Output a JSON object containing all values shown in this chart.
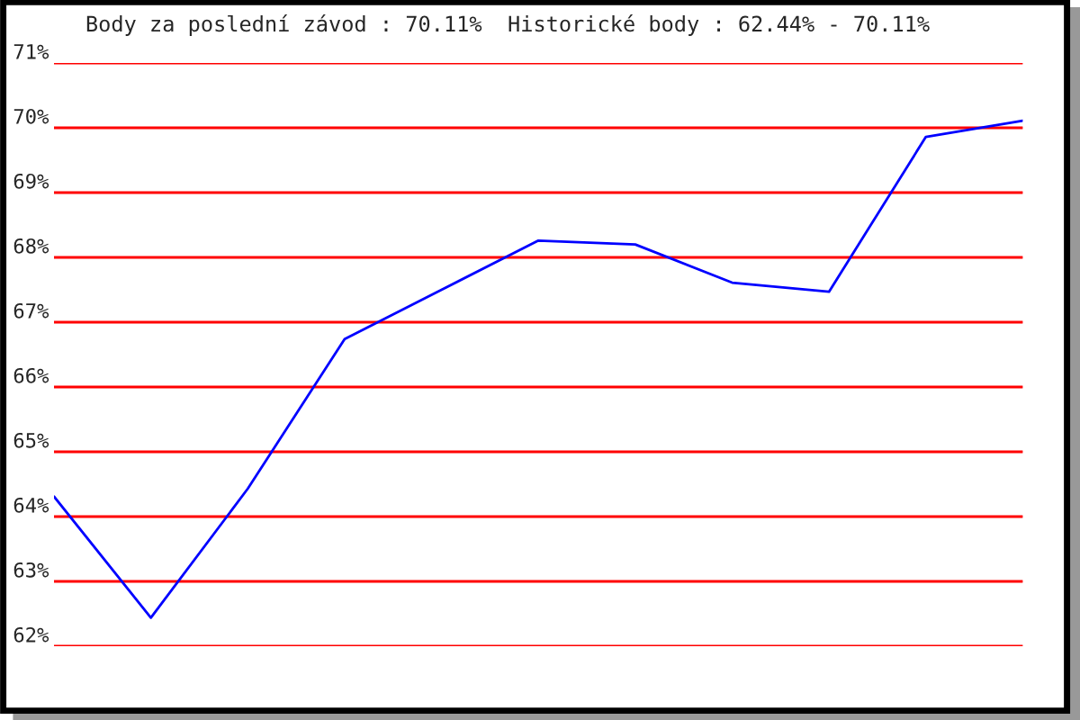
{
  "chart_data": {
    "type": "line",
    "title": "Body za poslední závod : 70.11%  Historické body : 62.44% - 70.11%",
    "categories": [
      null,
      null,
      null,
      null,
      null,
      null,
      null,
      null,
      null,
      null,
      null
    ],
    "series": [
      {
        "color": "#0000ff",
        "values": [
          64.31,
          62.44,
          64.43,
          66.74,
          67.5,
          68.26,
          68.2,
          67.61,
          67.47,
          69.86,
          70.11
        ]
      }
    ],
    "ylim": [
      62,
      71
    ],
    "yticks": [
      {
        "value": 62,
        "label": "62%"
      },
      {
        "value": 63,
        "label": "63%"
      },
      {
        "value": 64,
        "label": "64%"
      },
      {
        "value": 65,
        "label": "65%"
      },
      {
        "value": 66,
        "label": "66%"
      },
      {
        "value": 67,
        "label": "67%"
      },
      {
        "value": 68,
        "label": "68%"
      },
      {
        "value": 69,
        "label": "69%"
      },
      {
        "value": 70,
        "label": "70%"
      },
      {
        "value": 71,
        "label": "71%"
      }
    ],
    "grid": "y",
    "legend": false,
    "marker": "none",
    "line_style": "solid"
  }
}
